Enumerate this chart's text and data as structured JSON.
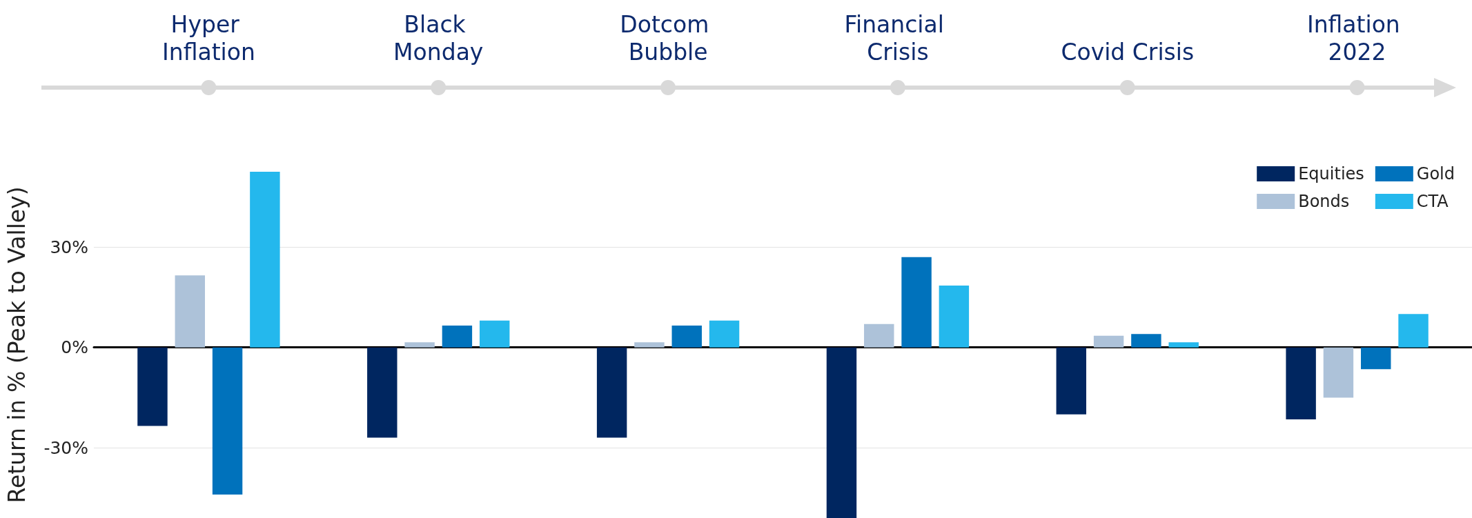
{
  "chart_data": {
    "type": "bar",
    "ylabel": "Return in % (Peak to Valley)",
    "categories": [
      "Hyper Inflation",
      "Black Monday",
      "Dotcom Bubble",
      "Financial Crisis",
      "Covid Crisis",
      "Inflation 2022"
    ],
    "series": [
      {
        "name": "Equities",
        "color": "#002660",
        "values": [
          -23.5,
          -27,
          -27,
          -51,
          -20,
          -21.5
        ]
      },
      {
        "name": "Bonds",
        "color": "#adc2d9",
        "values": [
          21.5,
          1.5,
          1.5,
          7,
          3.5,
          -15
        ]
      },
      {
        "name": "Gold",
        "color": "#0072bc",
        "values": [
          -44,
          6.5,
          6.5,
          27,
          4,
          -6.5
        ]
      },
      {
        "name": "CTA",
        "color": "#24b8ed",
        "values": [
          52.5,
          8,
          8,
          18.5,
          1.5,
          10
        ]
      }
    ],
    "ylim": [
      -51,
      52.5
    ],
    "yticks": [
      {
        "value": -30,
        "label": "-30%"
      },
      {
        "value": 0,
        "label": "0%"
      },
      {
        "value": 30,
        "label": "30%"
      }
    ],
    "grid": "y",
    "legend": "top right"
  }
}
